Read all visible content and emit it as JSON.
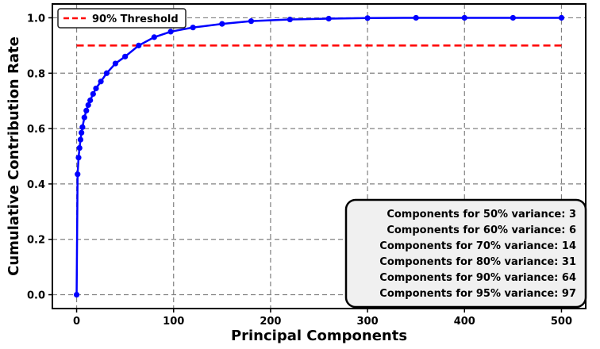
{
  "chart_data": {
    "type": "line",
    "xlabel": "Principal Components",
    "ylabel": "Cumulative Contribution Rate",
    "xlim": [
      -25,
      525
    ],
    "ylim": [
      -0.05,
      1.05
    ],
    "xticks": [
      0,
      100,
      200,
      300,
      400,
      500
    ],
    "xtick_labels": [
      "0",
      "100",
      "200",
      "300",
      "400",
      "500"
    ],
    "yticks": [
      0.0,
      0.2,
      0.4,
      0.6,
      0.8,
      1.0
    ],
    "ytick_labels": [
      "0.0",
      "0.2",
      "0.4",
      "0.6",
      "0.8",
      "1.0"
    ],
    "grid": true,
    "legend_position": "top-left",
    "annotation_position": "bottom-right",
    "series": [
      {
        "name": "",
        "color": "#0000ff",
        "marker": "circle",
        "x": [
          0,
          1,
          2,
          3,
          4,
          5,
          6,
          8,
          10,
          12,
          14,
          17,
          20,
          25,
          31,
          40,
          50,
          64,
          80,
          97,
          120,
          150,
          180,
          220,
          260,
          300,
          350,
          400,
          450,
          500
        ],
        "y": [
          0.0,
          0.435,
          0.495,
          0.53,
          0.56,
          0.585,
          0.605,
          0.64,
          0.665,
          0.685,
          0.702,
          0.725,
          0.745,
          0.77,
          0.8,
          0.835,
          0.86,
          0.9,
          0.93,
          0.95,
          0.965,
          0.978,
          0.988,
          0.994,
          0.997,
          0.999,
          1.0,
          1.0,
          1.0,
          1.0
        ]
      },
      {
        "name": "90% Threshold",
        "color": "#ff0000",
        "style": "dashed",
        "x": [
          0,
          500
        ],
        "y": [
          0.9,
          0.9
        ]
      }
    ],
    "annotations": [
      "Components for 50% variance:  3",
      "Components for 60% variance:  6",
      "Components for 70% variance: 14",
      "Components for 80% variance: 31",
      "Components for 90% variance: 64",
      "Components for 95% variance: 97"
    ]
  }
}
